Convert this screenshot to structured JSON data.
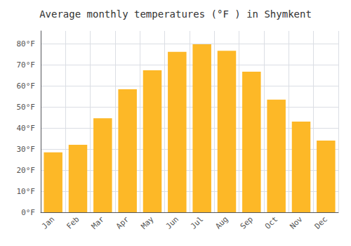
{
  "chart_data": {
    "type": "bar",
    "title": "Average monthly temperatures (°F ) in Shymkent",
    "categories": [
      "Jan",
      "Feb",
      "Mar",
      "Apr",
      "May",
      "Jun",
      "Jul",
      "Aug",
      "Sep",
      "Oct",
      "Nov",
      "Dec"
    ],
    "values": [
      28.4,
      32.0,
      44.6,
      58.3,
      67.3,
      76.1,
      79.7,
      76.6,
      66.7,
      53.4,
      43.0,
      34.0
    ],
    "color": "#FDB827",
    "ylim": [
      0,
      86
    ],
    "yticks": [
      {
        "value": 0,
        "label": "0°F"
      },
      {
        "value": 10,
        "label": "10°F"
      },
      {
        "value": 20,
        "label": "20°F"
      },
      {
        "value": 30,
        "label": "30°F"
      },
      {
        "value": 40,
        "label": "40°F"
      },
      {
        "value": 50,
        "label": "50°F"
      },
      {
        "value": 60,
        "label": "60°F"
      },
      {
        "value": 70,
        "label": "70°F"
      },
      {
        "value": 80,
        "label": "80°F"
      }
    ],
    "grid": true
  }
}
